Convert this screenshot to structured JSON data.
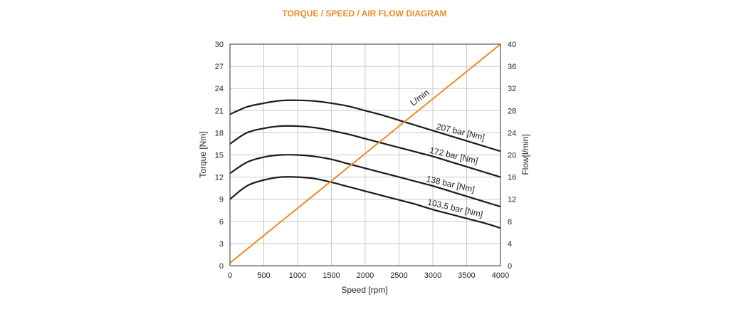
{
  "chart_data": {
    "type": "line",
    "title": "TORQUE / SPEED / AIR FLOW DIAGRAM",
    "xlabel": "Speed [rpm]",
    "ylabel": "Torque [Nm]",
    "y2label": "Flow[l/min]",
    "xlim": [
      0,
      4000
    ],
    "ylim": [
      0,
      30
    ],
    "y2lim": [
      0,
      40
    ],
    "x_ticks": [
      "0",
      "500",
      "1000",
      "1500",
      "2000",
      "2500",
      "3000",
      "3500",
      "4000"
    ],
    "y_ticks": [
      "0",
      "3",
      "6",
      "9",
      "12",
      "15",
      "18",
      "21",
      "24",
      "27",
      "30"
    ],
    "y2_ticks": [
      "0",
      "4",
      "8",
      "12",
      "16",
      "20",
      "24",
      "28",
      "32",
      "36",
      "40"
    ],
    "grid": true,
    "x": [
      0,
      250,
      500,
      750,
      1000,
      1250,
      1500,
      1750,
      2000,
      2250,
      2500,
      2750,
      3000,
      3250,
      3500,
      3750,
      4000
    ],
    "series": [
      {
        "name": "207 bar [Nm]",
        "axis": "left",
        "values": [
          20.5,
          21.5,
          22.0,
          22.35,
          22.4,
          22.3,
          22.0,
          21.6,
          21.0,
          20.4,
          19.7,
          19.0,
          18.3,
          17.6,
          16.9,
          16.2,
          15.5
        ]
      },
      {
        "name": "172 bar [Nm]",
        "axis": "left",
        "values": [
          16.5,
          18.0,
          18.6,
          18.9,
          18.9,
          18.7,
          18.3,
          17.8,
          17.2,
          16.6,
          16.0,
          15.4,
          14.8,
          14.1,
          13.4,
          12.7,
          12.0
        ]
      },
      {
        "name": "138 bar [Nm]",
        "axis": "left",
        "values": [
          12.5,
          14.0,
          14.7,
          15.0,
          15.0,
          14.8,
          14.4,
          13.8,
          13.2,
          12.6,
          12.0,
          11.4,
          10.8,
          10.1,
          9.4,
          8.7,
          8.0
        ]
      },
      {
        "name": "103,5 bar [Nm]",
        "axis": "left",
        "values": [
          9.0,
          10.8,
          11.6,
          12.0,
          12.0,
          11.8,
          11.3,
          10.7,
          10.1,
          9.5,
          8.9,
          8.3,
          7.6,
          7.0,
          6.4,
          5.8,
          5.1
        ]
      },
      {
        "name": "L/min",
        "axis": "right",
        "color": "#f08a24",
        "values": [
          0.5,
          2.97,
          5.44,
          7.91,
          10.38,
          12.84,
          15.31,
          17.78,
          20.25,
          22.72,
          25.19,
          27.66,
          30.13,
          32.59,
          35.06,
          37.53,
          40.0
        ]
      }
    ]
  }
}
